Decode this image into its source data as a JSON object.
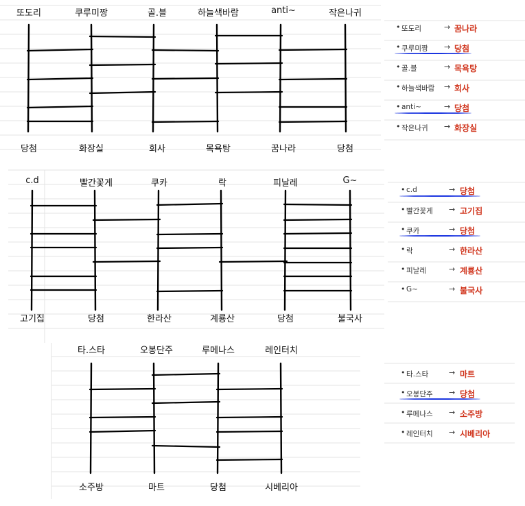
{
  "ladders": [
    {
      "names": [
        "또도리",
        "쿠루미짱",
        "골.블",
        "하늘색바람",
        "anti~",
        "작은나귀"
      ],
      "results": [
        "당첨",
        "화장실",
        "회사",
        "목욕탕",
        "꿈나라",
        "당첨"
      ]
    },
    {
      "names": [
        "c.d",
        "빨간꽃게",
        "쿠카",
        "락",
        "피날레",
        "G~"
      ],
      "results": [
        "고기집",
        "당첨",
        "한라산",
        "계룡산",
        "당첨",
        "불국사"
      ]
    },
    {
      "names": [
        "타.스타",
        "오봉단주",
        "루메나스",
        "레인터치"
      ],
      "results": [
        "소주방",
        "마트",
        "당첨",
        "시베리아"
      ]
    }
  ],
  "summaries": [
    {
      "rows": [
        {
          "name": "또도리",
          "result": "꿈나라",
          "underlined": false
        },
        {
          "name": "쿠루미짱",
          "result": "당첨",
          "underlined": true
        },
        {
          "name": "골.블",
          "result": "목욕탕",
          "underlined": false
        },
        {
          "name": "하늘색바람",
          "result": "회사",
          "underlined": false
        },
        {
          "name": "anti~",
          "result": "당첨",
          "underlined": true
        },
        {
          "name": "작은나귀",
          "result": "화장실",
          "underlined": false
        }
      ]
    },
    {
      "rows": [
        {
          "name": "c.d",
          "result": "당첨",
          "underlined": true
        },
        {
          "name": "빨간꽃게",
          "result": "고기집",
          "underlined": false
        },
        {
          "name": "쿠카",
          "result": "당첨",
          "underlined": true
        },
        {
          "name": "락",
          "result": "한라산",
          "underlined": false
        },
        {
          "name": "피날레",
          "result": "계룡산",
          "underlined": false
        },
        {
          "name": "G~",
          "result": "불국사",
          "underlined": false
        }
      ]
    },
    {
      "rows": [
        {
          "name": "타.스타",
          "result": "마트",
          "underlined": false
        },
        {
          "name": "오봉단주",
          "result": "당첨",
          "underlined": true
        },
        {
          "name": "루메나스",
          "result": "소주방",
          "underlined": false
        },
        {
          "name": "레인터치",
          "result": "시베리아",
          "underlined": false
        }
      ]
    }
  ],
  "colors": {
    "result_text": "#d0341c",
    "highlight_underline": "#1a34e0",
    "ruled_lines": "#e3e3e3"
  },
  "icons": {
    "bullet": "bullet-dot-icon",
    "arrow": "right-arrow-icon"
  }
}
